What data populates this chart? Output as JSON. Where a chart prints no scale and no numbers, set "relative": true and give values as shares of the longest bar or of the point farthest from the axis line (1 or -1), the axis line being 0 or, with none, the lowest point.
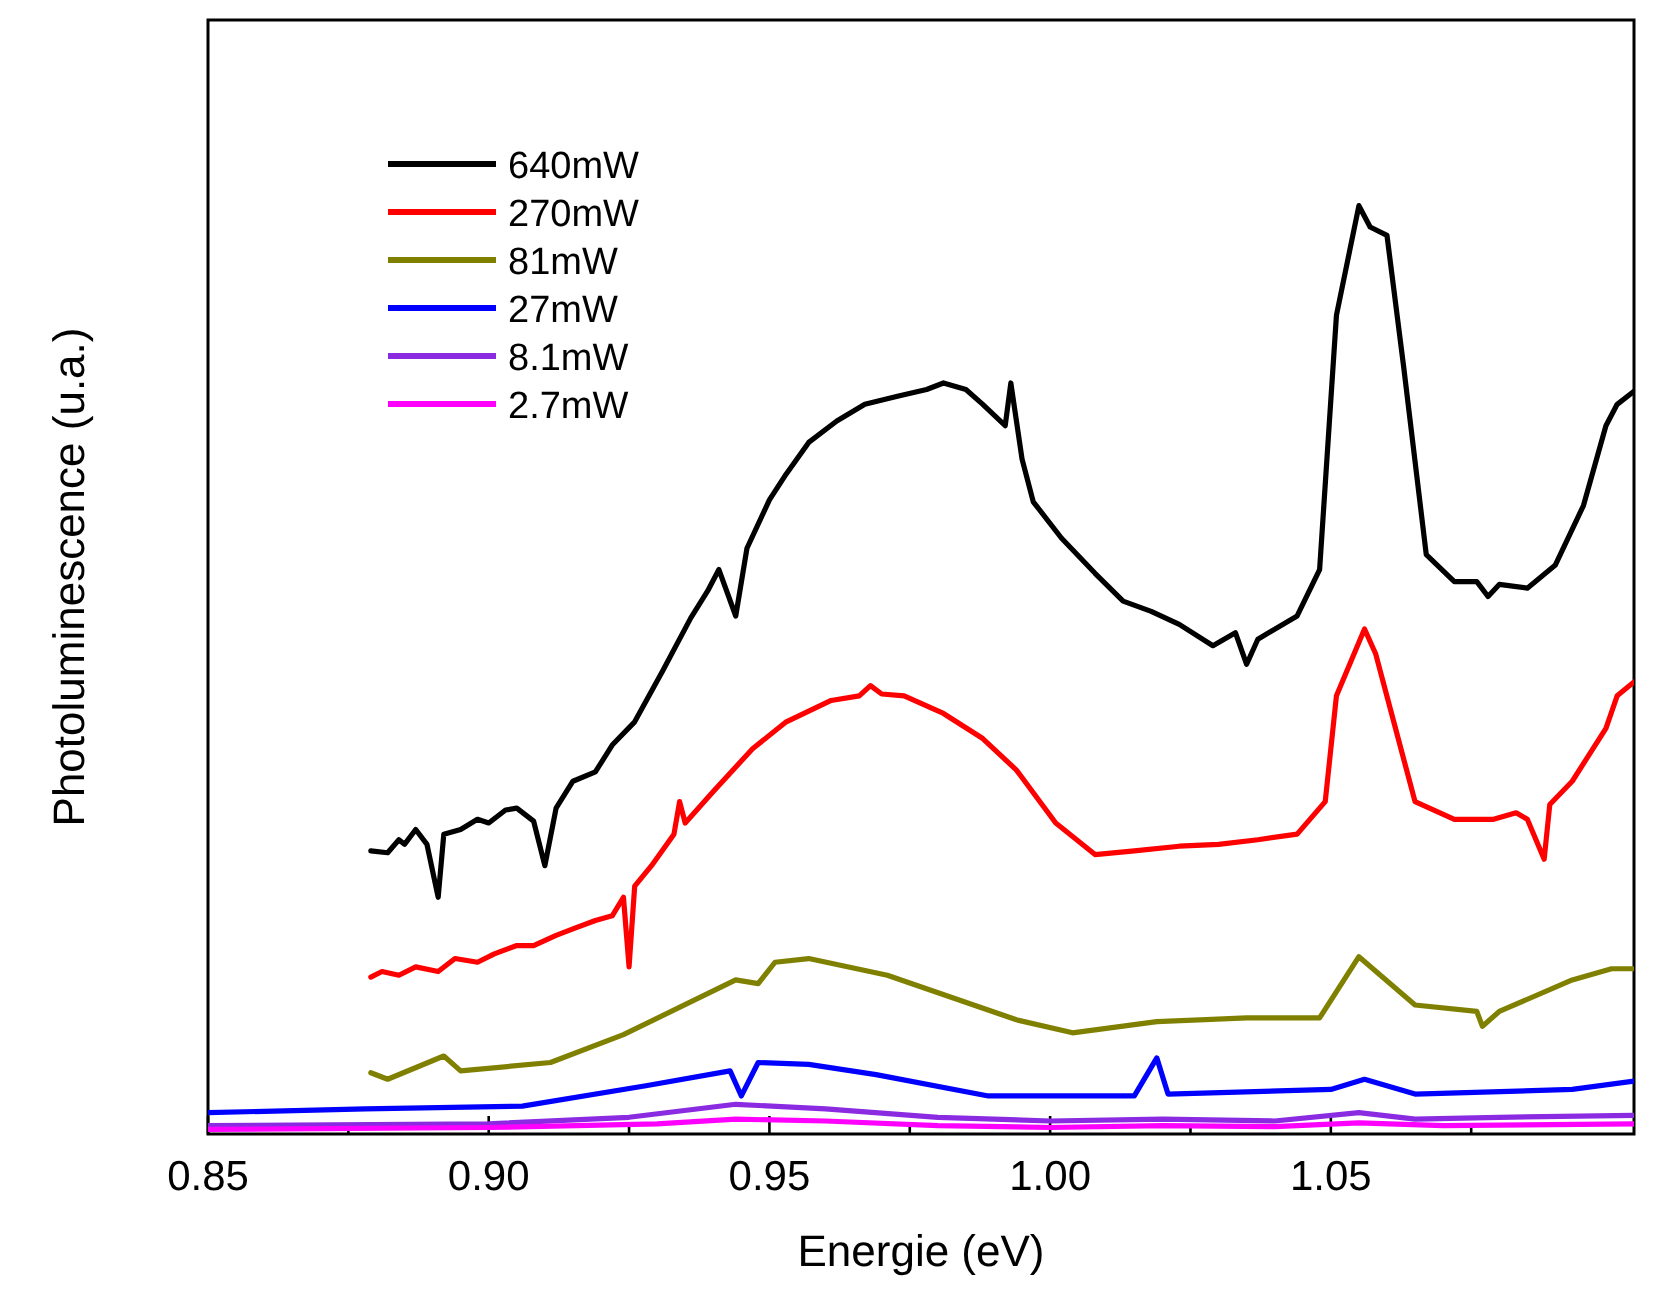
{
  "chart_data": {
    "type": "line",
    "relative": true,
    "xlabel": "Energie (eV)",
    "ylabel": "Photoluminescence (u.a.)",
    "xlim": [
      0.85,
      1.104
    ],
    "xticks": [
      0.85,
      {
        "value": 0.875,
        "label": null
      },
      "0.90",
      {
        "value": 0.925,
        "label": null
      },
      0.95,
      {
        "value": 0.975,
        "label": null
      },
      "1.00",
      {
        "value": 1.025,
        "label": null
      },
      1.05,
      {
        "value": 1.075,
        "label": null
      }
    ],
    "legend": "top left",
    "grid": false,
    "marker": "none",
    "line_style": "solid",
    "series": [
      {
        "name": "640mW",
        "color": "#000000",
        "x": [
          0.879,
          0.882,
          0.884,
          0.885,
          0.887,
          0.889,
          0.891,
          0.892,
          0.895,
          0.898,
          0.9,
          0.903,
          0.905,
          0.908,
          0.91,
          0.912,
          0.915,
          0.919,
          0.922,
          0.926,
          0.931,
          0.936,
          0.939,
          0.941,
          0.944,
          0.946,
          0.95,
          0.953,
          0.957,
          0.962,
          0.967,
          0.973,
          0.978,
          0.981,
          0.985,
          0.988,
          0.992,
          0.993,
          0.995,
          0.997,
          1.002,
          1.008,
          1.013,
          1.018,
          1.023,
          1.029,
          1.033,
          1.035,
          1.037,
          1.044,
          1.048,
          1.051,
          1.055,
          1.057,
          1.06,
          1.063,
          1.067,
          1.072,
          1.076,
          1.078,
          1.08,
          1.085,
          1.09,
          1.095,
          1.099,
          1.101,
          1.104
        ],
        "values": [
          0.305,
          0.303,
          0.317,
          0.312,
          0.328,
          0.312,
          0.255,
          0.323,
          0.328,
          0.339,
          0.335,
          0.349,
          0.351,
          0.337,
          0.289,
          0.351,
          0.38,
          0.39,
          0.419,
          0.444,
          0.499,
          0.556,
          0.585,
          0.608,
          0.558,
          0.631,
          0.683,
          0.711,
          0.745,
          0.768,
          0.786,
          0.795,
          0.802,
          0.809,
          0.802,
          0.786,
          0.763,
          0.809,
          0.727,
          0.681,
          0.642,
          0.604,
          0.574,
          0.563,
          0.549,
          0.526,
          0.54,
          0.506,
          0.533,
          0.558,
          0.608,
          0.882,
          1,
          0.977,
          0.968,
          0.825,
          0.624,
          0.595,
          0.595,
          0.579,
          0.592,
          0.588,
          0.613,
          0.677,
          0.763,
          0.786,
          0.8
        ]
      },
      {
        "name": "270mW",
        "color": "#ff0000",
        "x": [
          0.879,
          0.881,
          0.884,
          0.887,
          0.891,
          0.894,
          0.898,
          0.901,
          0.905,
          0.908,
          0.912,
          0.915,
          0.919,
          0.922,
          0.924,
          0.925,
          0.926,
          0.929,
          0.933,
          0.934,
          0.935,
          0.94,
          0.947,
          0.953,
          0.961,
          0.966,
          0.968,
          0.97,
          0.974,
          0.981,
          0.988,
          0.994,
          1.001,
          1.008,
          1.015,
          1.023,
          1.03,
          1.037,
          1.044,
          1.049,
          1.051,
          1.056,
          1.058,
          1.062,
          1.065,
          1.072,
          1.079,
          1.083,
          1.085,
          1.088,
          1.089,
          1.093,
          1.099,
          1.101,
          1.104
        ],
        "values": [
          0.169,
          0.175,
          0.171,
          0.18,
          0.175,
          0.189,
          0.185,
          0.194,
          0.203,
          0.203,
          0.214,
          0.221,
          0.23,
          0.235,
          0.255,
          0.18,
          0.267,
          0.289,
          0.323,
          0.358,
          0.335,
          0.369,
          0.415,
          0.444,
          0.467,
          0.472,
          0.483,
          0.474,
          0.472,
          0.453,
          0.426,
          0.392,
          0.335,
          0.301,
          0.305,
          0.31,
          0.312,
          0.317,
          0.323,
          0.358,
          0.472,
          0.544,
          0.517,
          0.426,
          0.358,
          0.339,
          0.339,
          0.346,
          0.339,
          0.296,
          0.355,
          0.38,
          0.437,
          0.472,
          0.487
        ]
      },
      {
        "name": "81mW",
        "color": "#808000",
        "x": [
          0.879,
          0.882,
          0.892,
          0.895,
          0.911,
          0.924,
          0.944,
          0.948,
          0.951,
          0.957,
          0.971,
          0.994,
          1.004,
          1.019,
          1.035,
          1.048,
          1.055,
          1.065,
          1.076,
          1.077,
          1.08,
          1.093,
          1.1,
          1.104
        ],
        "values": [
          0.066,
          0.059,
          0.084,
          0.068,
          0.077,
          0.107,
          0.166,
          0.162,
          0.185,
          0.189,
          0.171,
          0.123,
          0.109,
          0.121,
          0.125,
          0.125,
          0.191,
          0.139,
          0.132,
          0.116,
          0.132,
          0.166,
          0.178,
          0.178
        ]
      },
      {
        "name": "27mW",
        "color": "#0000ff",
        "x": [
          0.85,
          0.878,
          0.906,
          0.928,
          0.943,
          0.945,
          0.948,
          0.957,
          0.969,
          0.989,
          1.015,
          1.019,
          1.021,
          1.05,
          1.056,
          1.065,
          1.093,
          1.104
        ],
        "values": [
          0.023,
          0.027,
          0.03,
          0.052,
          0.068,
          0.041,
          0.077,
          0.075,
          0.064,
          0.041,
          0.041,
          0.082,
          0.043,
          0.048,
          0.059,
          0.043,
          0.048,
          0.057
        ]
      },
      {
        "name": "8.1mW",
        "color": "#8a2be2",
        "x": [
          0.85,
          0.9,
          0.925,
          0.944,
          0.96,
          0.98,
          1.0,
          1.02,
          1.04,
          1.055,
          1.065,
          1.08,
          1.104
        ],
        "values": [
          0.009,
          0.011,
          0.018,
          0.032,
          0.027,
          0.018,
          0.014,
          0.016,
          0.014,
          0.023,
          0.016,
          0.018,
          0.02
        ]
      },
      {
        "name": "2.7mW",
        "color": "#ff00ff",
        "x": [
          0.85,
          0.9,
          0.93,
          0.944,
          0.96,
          0.98,
          1.0,
          1.02,
          1.04,
          1.055,
          1.07,
          1.104
        ],
        "values": [
          0.005,
          0.007,
          0.011,
          0.016,
          0.014,
          0.009,
          0.007,
          0.009,
          0.008,
          0.012,
          0.009,
          0.011
        ]
      }
    ]
  }
}
